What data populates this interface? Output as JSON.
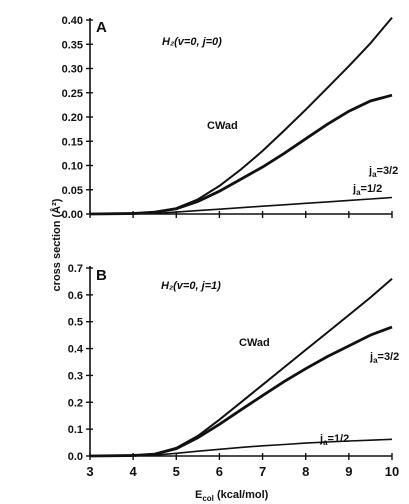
{
  "y_axis_label": "cross section (Å²)",
  "x_axis_label": "E_col (kcal/mol)",
  "chart_data": [
    {
      "type": "line",
      "panel_label": "A",
      "title": "H₂(v=0, j=0)",
      "x": [
        3,
        4,
        4.5,
        5,
        5.5,
        6,
        6.5,
        7,
        7.5,
        8,
        8.5,
        9,
        9.5,
        10
      ],
      "xlim": [
        3,
        10
      ],
      "ylim": [
        0,
        0.4
      ],
      "yticks": [
        0.0,
        0.05,
        0.1,
        0.15,
        0.2,
        0.25,
        0.3,
        0.35,
        0.4
      ],
      "yticklabels": [
        "0.00",
        "0.05",
        "0.10",
        "0.15",
        "0.20",
        "0.25",
        "0.30",
        "0.35",
        "0.40"
      ],
      "series": [
        {
          "name": "CWad",
          "values": [
            0,
            0.001,
            0.004,
            0.012,
            0.03,
            0.058,
            0.092,
            0.13,
            0.172,
            0.215,
            0.26,
            0.305,
            0.352,
            0.405
          ]
        },
        {
          "name": "j_a=3/2",
          "values": [
            0,
            0.001,
            0.004,
            0.011,
            0.026,
            0.047,
            0.072,
            0.097,
            0.125,
            0.155,
            0.185,
            0.212,
            0.233,
            0.245
          ]
        },
        {
          "name": "j_a=1/2",
          "values": [
            0,
            0.0005,
            0.001,
            0.004,
            0.007,
            0.01,
            0.013,
            0.016,
            0.019,
            0.022,
            0.025,
            0.028,
            0.031,
            0.034
          ]
        }
      ]
    },
    {
      "type": "line",
      "panel_label": "B",
      "title": "H₂(v=0, j=1)",
      "x": [
        3,
        4,
        4.5,
        5,
        5.5,
        6,
        6.5,
        7,
        7.5,
        8,
        8.5,
        9,
        9.5,
        10
      ],
      "xlim": [
        3,
        10
      ],
      "ylim": [
        0,
        0.7
      ],
      "yticks": [
        0.0,
        0.1,
        0.2,
        0.3,
        0.4,
        0.5,
        0.6,
        0.7
      ],
      "yticklabels": [
        "0.0",
        "0.1",
        "0.2",
        "0.3",
        "0.4",
        "0.5",
        "0.6",
        "0.7"
      ],
      "xticks": [
        3,
        4,
        5,
        6,
        7,
        8,
        9,
        10
      ],
      "xticklabels": [
        "3",
        "4",
        "5",
        "6",
        "7",
        "8",
        "9",
        "10"
      ],
      "series": [
        {
          "name": "CWad",
          "values": [
            0,
            0.002,
            0.008,
            0.03,
            0.075,
            0.135,
            0.2,
            0.265,
            0.33,
            0.395,
            0.46,
            0.525,
            0.59,
            0.66
          ]
        },
        {
          "name": "j_a=3/2",
          "values": [
            0,
            0.002,
            0.007,
            0.027,
            0.068,
            0.118,
            0.172,
            0.225,
            0.277,
            0.325,
            0.37,
            0.41,
            0.45,
            0.48
          ]
        },
        {
          "name": "j_a=1/2",
          "values": [
            0,
            0.001,
            0.003,
            0.01,
            0.018,
            0.025,
            0.032,
            0.038,
            0.043,
            0.048,
            0.052,
            0.056,
            0.059,
            0.062
          ]
        }
      ]
    }
  ]
}
